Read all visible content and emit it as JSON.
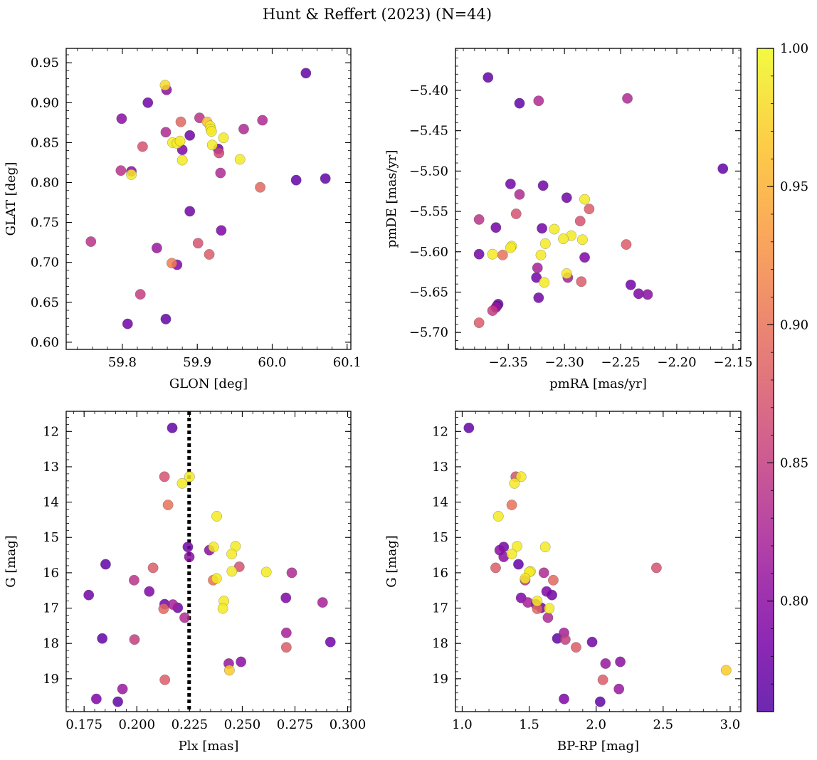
{
  "title": "Hunt & Reffert (2023) (N=44)",
  "colorbar": {
    "min": 0.76,
    "max": 1.0,
    "ticks": [
      0.8,
      0.85,
      0.9,
      0.95,
      1.0
    ],
    "tick_labels": [
      "0.80",
      "0.85",
      "0.90",
      "0.95",
      "1.00"
    ],
    "colormap": "plasma"
  },
  "chart_data": [
    {
      "type": "scatter",
      "xlabel": "GLON [deg]",
      "ylabel": "GLAT [deg]",
      "xlim": [
        59.725,
        60.105
      ],
      "ylim": [
        0.591,
        0.968
      ],
      "invert_y": false,
      "xticks": [
        59.8,
        59.9,
        60.0,
        60.1
      ],
      "xtick_labels": [
        "59.8",
        "59.9",
        "60.0",
        "60.1"
      ],
      "yticks": [
        0.6,
        0.65,
        0.7,
        0.75,
        0.8,
        0.85,
        0.9,
        0.95
      ],
      "ytick_labels": [
        "0.60",
        "0.65",
        "0.70",
        "0.75",
        "0.80",
        "0.85",
        "0.90",
        "0.95"
      ],
      "points": [
        {
          "x": 60.045,
          "y": 0.937,
          "c": 0.77
        },
        {
          "x": 59.859,
          "y": 0.916,
          "c": 0.8
        },
        {
          "x": 59.834,
          "y": 0.9,
          "c": 0.78
        },
        {
          "x": 59.799,
          "y": 0.88,
          "c": 0.8
        },
        {
          "x": 59.903,
          "y": 0.881,
          "c": 0.84
        },
        {
          "x": 59.878,
          "y": 0.876,
          "c": 0.89
        },
        {
          "x": 59.913,
          "y": 0.876,
          "c": 0.96
        },
        {
          "x": 59.987,
          "y": 0.878,
          "c": 0.83
        },
        {
          "x": 59.962,
          "y": 0.867,
          "c": 0.83
        },
        {
          "x": 59.858,
          "y": 0.863,
          "c": 0.83
        },
        {
          "x": 59.89,
          "y": 0.859,
          "c": 0.78
        },
        {
          "x": 59.935,
          "y": 0.856,
          "c": 0.99
        },
        {
          "x": 59.92,
          "y": 0.847,
          "c": 0.99
        },
        {
          "x": 59.827,
          "y": 0.845,
          "c": 0.87
        },
        {
          "x": 59.928,
          "y": 0.842,
          "c": 0.78
        },
        {
          "x": 59.88,
          "y": 0.841,
          "c": 0.79
        },
        {
          "x": 59.929,
          "y": 0.837,
          "c": 0.86
        },
        {
          "x": 59.957,
          "y": 0.829,
          "c": 0.99
        },
        {
          "x": 59.88,
          "y": 0.828,
          "c": 0.99
        },
        {
          "x": 59.798,
          "y": 0.815,
          "c": 0.84
        },
        {
          "x": 59.812,
          "y": 0.814,
          "c": 0.8
        },
        {
          "x": 59.931,
          "y": 0.812,
          "c": 0.83
        },
        {
          "x": 60.071,
          "y": 0.805,
          "c": 0.77
        },
        {
          "x": 60.032,
          "y": 0.803,
          "c": 0.77
        },
        {
          "x": 59.984,
          "y": 0.794,
          "c": 0.89
        },
        {
          "x": 59.89,
          "y": 0.764,
          "c": 0.78
        },
        {
          "x": 59.932,
          "y": 0.74,
          "c": 0.79
        },
        {
          "x": 59.758,
          "y": 0.726,
          "c": 0.84
        },
        {
          "x": 59.901,
          "y": 0.724,
          "c": 0.87
        },
        {
          "x": 59.846,
          "y": 0.718,
          "c": 0.81
        },
        {
          "x": 59.916,
          "y": 0.71,
          "c": 0.88
        },
        {
          "x": 59.866,
          "y": 0.699,
          "c": 0.91
        },
        {
          "x": 59.873,
          "y": 0.697,
          "c": 0.79
        },
        {
          "x": 59.824,
          "y": 0.66,
          "c": 0.85
        },
        {
          "x": 59.858,
          "y": 0.629,
          "c": 0.77
        },
        {
          "x": 59.807,
          "y": 0.623,
          "c": 0.78
        },
        {
          "x": 59.857,
          "y": 0.922,
          "c": 0.98
        },
        {
          "x": 59.867,
          "y": 0.85,
          "c": 0.99
        },
        {
          "x": 59.873,
          "y": 0.849,
          "c": 0.99
        },
        {
          "x": 59.877,
          "y": 0.852,
          "c": 0.99
        },
        {
          "x": 59.917,
          "y": 0.871,
          "c": 0.99
        },
        {
          "x": 59.918,
          "y": 0.867,
          "c": 0.99
        },
        {
          "x": 59.919,
          "y": 0.864,
          "c": 0.99
        },
        {
          "x": 59.812,
          "y": 0.81,
          "c": 0.99
        }
      ]
    },
    {
      "type": "scatter",
      "xlabel": "pmRA [mas/yr]",
      "ylabel": "pmDE [mas/yr]",
      "xlim": [
        -2.397,
        -2.143
      ],
      "ylim": [
        -5.721,
        -5.348
      ],
      "invert_y": false,
      "xticks": [
        -2.35,
        -2.3,
        -2.25,
        -2.2,
        -2.15
      ],
      "xtick_labels": [
        "−2.35",
        "−2.30",
        "−2.25",
        "−2.20",
        "−2.15"
      ],
      "yticks": [
        -5.7,
        -5.65,
        -5.6,
        -5.55,
        -5.5,
        -5.45,
        -5.4
      ],
      "ytick_labels": [
        "−5.70",
        "−5.65",
        "−5.60",
        "−5.55",
        "−5.50",
        "−5.45",
        "−5.40"
      ],
      "points": [
        {
          "x": -2.368,
          "y": -5.384,
          "c": 0.77
        },
        {
          "x": -2.34,
          "y": -5.416,
          "c": 0.77
        },
        {
          "x": -2.323,
          "y": -5.413,
          "c": 0.83
        },
        {
          "x": -2.244,
          "y": -5.41,
          "c": 0.83
        },
        {
          "x": -2.159,
          "y": -5.497,
          "c": 0.77
        },
        {
          "x": -2.348,
          "y": -5.516,
          "c": 0.78
        },
        {
          "x": -2.319,
          "y": -5.518,
          "c": 0.78
        },
        {
          "x": -2.34,
          "y": -5.529,
          "c": 0.83
        },
        {
          "x": -2.298,
          "y": -5.533,
          "c": 0.78
        },
        {
          "x": -2.282,
          "y": -5.535,
          "c": 0.99
        },
        {
          "x": -2.278,
          "y": -5.547,
          "c": 0.88
        },
        {
          "x": -2.343,
          "y": -5.553,
          "c": 0.87
        },
        {
          "x": -2.376,
          "y": -5.56,
          "c": 0.84
        },
        {
          "x": -2.286,
          "y": -5.562,
          "c": 0.87
        },
        {
          "x": -2.361,
          "y": -5.57,
          "c": 0.78
        },
        {
          "x": -2.32,
          "y": -5.571,
          "c": 0.78
        },
        {
          "x": -2.309,
          "y": -5.572,
          "c": 0.99
        },
        {
          "x": -2.294,
          "y": -5.58,
          "c": 0.99
        },
        {
          "x": -2.301,
          "y": -5.584,
          "c": 0.99
        },
        {
          "x": -2.284,
          "y": -5.585,
          "c": 0.99
        },
        {
          "x": -2.317,
          "y": -5.59,
          "c": 0.99
        },
        {
          "x": -2.245,
          "y": -5.591,
          "c": 0.88
        },
        {
          "x": -2.347,
          "y": -5.593,
          "c": 0.99
        },
        {
          "x": -2.348,
          "y": -5.595,
          "c": 0.99
        },
        {
          "x": -2.376,
          "y": -5.603,
          "c": 0.78
        },
        {
          "x": -2.364,
          "y": -5.603,
          "c": 0.99
        },
        {
          "x": -2.355,
          "y": -5.604,
          "c": 0.9
        },
        {
          "x": -2.321,
          "y": -5.604,
          "c": 0.99
        },
        {
          "x": -2.282,
          "y": -5.607,
          "c": 0.79
        },
        {
          "x": -2.324,
          "y": -5.62,
          "c": 0.82
        },
        {
          "x": -2.298,
          "y": -5.627,
          "c": 0.99
        },
        {
          "x": -2.297,
          "y": -5.632,
          "c": 0.82
        },
        {
          "x": -2.325,
          "y": -5.632,
          "c": 0.78
        },
        {
          "x": -2.285,
          "y": -5.637,
          "c": 0.88
        },
        {
          "x": -2.318,
          "y": -5.638,
          "c": 0.99
        },
        {
          "x": -2.241,
          "y": -5.641,
          "c": 0.78
        },
        {
          "x": -2.234,
          "y": -5.652,
          "c": 0.79
        },
        {
          "x": -2.226,
          "y": -5.653,
          "c": 0.8
        },
        {
          "x": -2.323,
          "y": -5.657,
          "c": 0.78
        },
        {
          "x": -2.359,
          "y": -5.665,
          "c": 0.78
        },
        {
          "x": -2.36,
          "y": -5.667,
          "c": 0.78
        },
        {
          "x": -2.361,
          "y": -5.669,
          "c": 0.81
        },
        {
          "x": -2.364,
          "y": -5.673,
          "c": 0.85
        },
        {
          "x": -2.376,
          "y": -5.688,
          "c": 0.88
        }
      ]
    },
    {
      "type": "scatter",
      "xlabel": "Plx [mas]",
      "ylabel": "G [mag]",
      "xlim": [
        0.1665,
        0.3015
      ],
      "ylim": [
        11.43,
        19.93
      ],
      "invert_y": true,
      "xticks": [
        0.175,
        0.2,
        0.225,
        0.25,
        0.275,
        0.3
      ],
      "xtick_labels": [
        "0.175",
        "0.200",
        "0.225",
        "0.250",
        "0.275",
        "0.300"
      ],
      "yticks": [
        12,
        13,
        14,
        15,
        16,
        17,
        18,
        19
      ],
      "ytick_labels": [
        "12",
        "13",
        "14",
        "15",
        "16",
        "17",
        "18",
        "19"
      ],
      "vline": 0.2248,
      "points": [
        {
          "x": 0.2168,
          "y": 11.9,
          "c": 0.77
        },
        {
          "x": 0.2131,
          "y": 13.28,
          "c": 0.87
        },
        {
          "x": 0.225,
          "y": 13.28,
          "c": 0.99
        },
        {
          "x": 0.2215,
          "y": 13.47,
          "c": 0.99
        },
        {
          "x": 0.2148,
          "y": 14.08,
          "c": 0.9
        },
        {
          "x": 0.2379,
          "y": 14.4,
          "c": 0.99
        },
        {
          "x": 0.2242,
          "y": 15.27,
          "c": 0.78
        },
        {
          "x": 0.2468,
          "y": 15.25,
          "c": 0.99
        },
        {
          "x": 0.2364,
          "y": 15.27,
          "c": 0.99
        },
        {
          "x": 0.2344,
          "y": 15.36,
          "c": 0.8
        },
        {
          "x": 0.245,
          "y": 15.47,
          "c": 0.99
        },
        {
          "x": 0.2249,
          "y": 15.55,
          "c": 0.8
        },
        {
          "x": 0.1852,
          "y": 15.76,
          "c": 0.77
        },
        {
          "x": 0.2077,
          "y": 15.86,
          "c": 0.88
        },
        {
          "x": 0.2486,
          "y": 15.83,
          "c": 0.87
        },
        {
          "x": 0.2451,
          "y": 15.96,
          "c": 0.99
        },
        {
          "x": 0.2614,
          "y": 15.98,
          "c": 0.99
        },
        {
          "x": 0.2735,
          "y": 16.0,
          "c": 0.83
        },
        {
          "x": 0.2378,
          "y": 16.16,
          "c": 0.99
        },
        {
          "x": 0.2362,
          "y": 16.21,
          "c": 0.9
        },
        {
          "x": 0.1987,
          "y": 16.21,
          "c": 0.84
        },
        {
          "x": 0.2059,
          "y": 16.53,
          "c": 0.79
        },
        {
          "x": 0.1772,
          "y": 16.63,
          "c": 0.78
        },
        {
          "x": 0.2707,
          "y": 16.71,
          "c": 0.79
        },
        {
          "x": 0.2413,
          "y": 16.8,
          "c": 0.99
        },
        {
          "x": 0.2881,
          "y": 16.84,
          "c": 0.82
        },
        {
          "x": 0.2132,
          "y": 16.89,
          "c": 0.78
        },
        {
          "x": 0.2171,
          "y": 16.9,
          "c": 0.82
        },
        {
          "x": 0.2194,
          "y": 16.99,
          "c": 0.78
        },
        {
          "x": 0.2127,
          "y": 17.02,
          "c": 0.89
        },
        {
          "x": 0.2408,
          "y": 17.01,
          "c": 0.99
        },
        {
          "x": 0.2227,
          "y": 17.27,
          "c": 0.83
        },
        {
          "x": 0.2709,
          "y": 17.7,
          "c": 0.82
        },
        {
          "x": 0.1836,
          "y": 17.86,
          "c": 0.77
        },
        {
          "x": 0.1989,
          "y": 17.89,
          "c": 0.85
        },
        {
          "x": 0.2918,
          "y": 17.96,
          "c": 0.78
        },
        {
          "x": 0.2709,
          "y": 18.11,
          "c": 0.88
        },
        {
          "x": 0.2436,
          "y": 18.57,
          "c": 0.81
        },
        {
          "x": 0.2494,
          "y": 18.52,
          "c": 0.8
        },
        {
          "x": 0.2439,
          "y": 18.76,
          "c": 0.97
        },
        {
          "x": 0.2133,
          "y": 19.03,
          "c": 0.88
        },
        {
          "x": 0.1932,
          "y": 19.29,
          "c": 0.81
        },
        {
          "x": 0.1808,
          "y": 19.57,
          "c": 0.79
        },
        {
          "x": 0.191,
          "y": 19.65,
          "c": 0.77
        }
      ]
    },
    {
      "type": "scatter",
      "xlabel": "BP-RP [mag]",
      "ylabel": "G [mag]",
      "xlim": [
        0.95,
        3.08
      ],
      "ylim": [
        11.43,
        19.93
      ],
      "invert_y": true,
      "xticks": [
        1.0,
        1.5,
        2.0,
        2.5,
        3.0
      ],
      "xtick_labels": [
        "1.0",
        "1.5",
        "2.0",
        "2.5",
        "3.0"
      ],
      "yticks": [
        12,
        13,
        14,
        15,
        16,
        17,
        18,
        19
      ],
      "ytick_labels": [
        "12",
        "13",
        "14",
        "15",
        "16",
        "17",
        "18",
        "19"
      ],
      "points": [
        {
          "x": 1.05,
          "y": 11.9,
          "c": 0.77
        },
        {
          "x": 1.4,
          "y": 13.28,
          "c": 0.87
        },
        {
          "x": 1.44,
          "y": 13.28,
          "c": 0.99
        },
        {
          "x": 1.39,
          "y": 13.47,
          "c": 0.99
        },
        {
          "x": 1.37,
          "y": 14.08,
          "c": 0.9
        },
        {
          "x": 1.27,
          "y": 14.4,
          "c": 0.99
        },
        {
          "x": 1.41,
          "y": 15.25,
          "c": 0.99
        },
        {
          "x": 1.31,
          "y": 15.27,
          "c": 0.78
        },
        {
          "x": 1.62,
          "y": 15.27,
          "c": 0.99
        },
        {
          "x": 1.28,
          "y": 15.36,
          "c": 0.8
        },
        {
          "x": 1.37,
          "y": 15.47,
          "c": 0.99
        },
        {
          "x": 1.31,
          "y": 15.55,
          "c": 0.8
        },
        {
          "x": 1.42,
          "y": 15.76,
          "c": 0.77
        },
        {
          "x": 1.25,
          "y": 15.86,
          "c": 0.88
        },
        {
          "x": 2.45,
          "y": 15.86,
          "c": 0.87
        },
        {
          "x": 1.51,
          "y": 15.96,
          "c": 0.99
        },
        {
          "x": 1.5,
          "y": 15.98,
          "c": 0.99
        },
        {
          "x": 1.61,
          "y": 16.0,
          "c": 0.83
        },
        {
          "x": 1.47,
          "y": 16.16,
          "c": 0.99
        },
        {
          "x": 1.47,
          "y": 16.21,
          "c": 0.84
        },
        {
          "x": 1.68,
          "y": 16.21,
          "c": 0.89
        },
        {
          "x": 1.63,
          "y": 16.53,
          "c": 0.79
        },
        {
          "x": 1.67,
          "y": 16.63,
          "c": 0.78
        },
        {
          "x": 1.44,
          "y": 16.71,
          "c": 0.79
        },
        {
          "x": 1.56,
          "y": 16.8,
          "c": 0.99
        },
        {
          "x": 1.49,
          "y": 16.84,
          "c": 0.82
        },
        {
          "x": 1.55,
          "y": 16.89,
          "c": 0.78
        },
        {
          "x": 1.59,
          "y": 16.99,
          "c": 0.78
        },
        {
          "x": 1.56,
          "y": 17.02,
          "c": 0.89
        },
        {
          "x": 1.65,
          "y": 17.01,
          "c": 0.99
        },
        {
          "x": 1.64,
          "y": 17.27,
          "c": 0.83
        },
        {
          "x": 1.76,
          "y": 17.7,
          "c": 0.82
        },
        {
          "x": 1.71,
          "y": 17.86,
          "c": 0.77
        },
        {
          "x": 1.77,
          "y": 17.89,
          "c": 0.85
        },
        {
          "x": 1.97,
          "y": 17.96,
          "c": 0.78
        },
        {
          "x": 1.85,
          "y": 18.11,
          "c": 0.88
        },
        {
          "x": 2.07,
          "y": 18.57,
          "c": 0.81
        },
        {
          "x": 2.18,
          "y": 18.52,
          "c": 0.8
        },
        {
          "x": 2.97,
          "y": 18.76,
          "c": 0.97
        },
        {
          "x": 2.05,
          "y": 19.03,
          "c": 0.88
        },
        {
          "x": 2.17,
          "y": 19.29,
          "c": 0.81
        },
        {
          "x": 1.76,
          "y": 19.57,
          "c": 0.79
        },
        {
          "x": 2.03,
          "y": 19.65,
          "c": 0.77
        }
      ]
    }
  ]
}
